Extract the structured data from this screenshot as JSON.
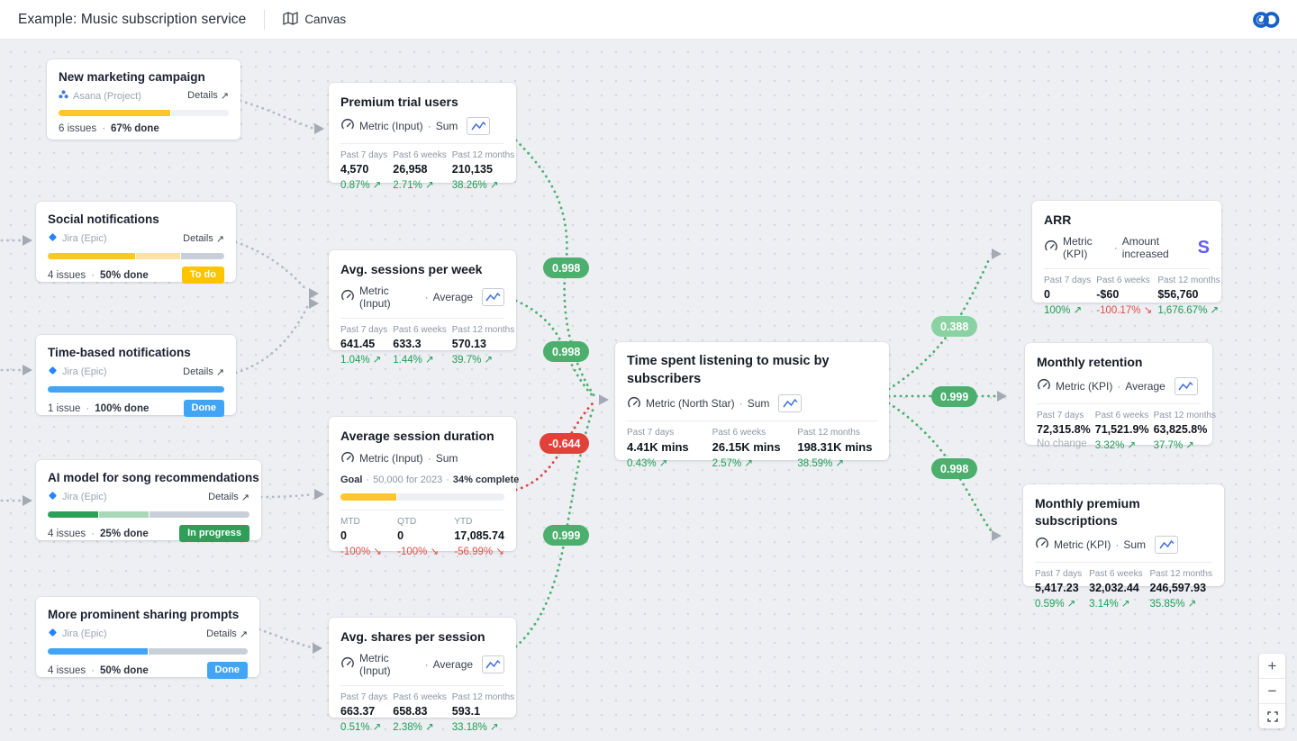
{
  "ui": {
    "sep": "·",
    "external_arrow": "↗",
    "stripe_glyph": "S",
    "zoom_in": "+",
    "zoom_out": "−"
  },
  "header": {
    "title": "Example: Music subscription service",
    "nav_canvas": "Canvas"
  },
  "colors": {
    "positive_delta": "#1f9d55",
    "negative_delta": "#e0504a",
    "neutral_delta": "#a6adb8",
    "correlation_strong": "#4caf6e",
    "correlation_weak": "#8ad2a1",
    "correlation_negative": "#e2413a",
    "edge_gray": "#b5bbc4",
    "edge_green": "#4caf6e",
    "edge_red": "#e0413c"
  },
  "workstreams": [
    {
      "title": "New marketing campaign",
      "source": "Asana (Project)",
      "source_icon": "asana",
      "details_label": "Details",
      "issues": "6 issues",
      "done": "67% done",
      "progress": [
        {
          "color": "#ffc62c",
          "pct": 66
        },
        {
          "color": "#f0f1f4",
          "pct": 34
        }
      ]
    },
    {
      "title": "Social notifications",
      "source": "Jira (Epic)",
      "source_icon": "jira",
      "details_label": "Details",
      "issues": "4 issues",
      "done": "50% done",
      "badge": {
        "label": "To do",
        "color": "#ffc400"
      },
      "progress": [
        {
          "color": "#ffc62c",
          "pct": 50
        },
        {
          "color": "#ffe2a1",
          "pct": 25
        },
        {
          "color": "#c9cfd8",
          "pct": 25
        }
      ]
    },
    {
      "title": "Time-based notifications",
      "source": "Jira (Epic)",
      "source_icon": "jira",
      "details_label": "Details",
      "issues": "1 issue",
      "done": "100% done",
      "badge": {
        "label": "Done",
        "color": "#41a4f5"
      },
      "progress": [
        {
          "color": "#41a4f5",
          "pct": 100
        }
      ]
    },
    {
      "title": "AI model for song recommendations",
      "source": "Jira (Epic)",
      "source_icon": "jira",
      "details_label": "Details",
      "issues": "4 issues",
      "done": "25% done",
      "badge": {
        "label": "In progress",
        "color": "#2e9e58"
      },
      "progress": [
        {
          "color": "#2e9e58",
          "pct": 25
        },
        {
          "color": "#a9d8b8",
          "pct": 25
        },
        {
          "color": "#c9cfd8",
          "pct": 50
        }
      ]
    },
    {
      "title": "More prominent sharing prompts",
      "source": "Jira (Epic)",
      "source_icon": "jira",
      "details_label": "Details",
      "issues": "4 issues",
      "done": "50% done",
      "badge": {
        "label": "Done",
        "color": "#41a4f5"
      },
      "progress": [
        {
          "color": "#41a4f5",
          "pct": 50
        },
        {
          "color": "#c9cfd8",
          "pct": 50
        }
      ]
    }
  ],
  "metrics": [
    {
      "title": "Premium trial users",
      "type": "Metric (Input)",
      "agg": "Sum",
      "cols": [
        {
          "label": "Past 7 days",
          "value": "4,570",
          "delta": "0.87% ↗",
          "trend": "up"
        },
        {
          "label": "Past 6 weeks",
          "value": "26,958",
          "delta": "2.71% ↗",
          "trend": "up"
        },
        {
          "label": "Past 12 months",
          "value": "210,135",
          "delta": "38.26% ↗",
          "trend": "up"
        }
      ]
    },
    {
      "title": "Avg. sessions per week",
      "type": "Metric (Input)",
      "agg": "Average",
      "cols": [
        {
          "label": "Past 7 days",
          "value": "641.45",
          "delta": "1.04% ↗",
          "trend": "up"
        },
        {
          "label": "Past 6 weeks",
          "value": "633.3",
          "delta": "1.44% ↗",
          "trend": "up"
        },
        {
          "label": "Past 12 months",
          "value": "570.13",
          "delta": "39.7% ↗",
          "trend": "up"
        }
      ]
    },
    {
      "title": "Average session duration",
      "type": "Metric (Input)",
      "agg": "Sum",
      "goal": {
        "label": "Goal",
        "text": "50,000 for 2023",
        "complete": "34% complete"
      },
      "goal_segments": [
        {
          "color": "#ffc62c",
          "pct": 34
        },
        {
          "color": "#edeff2",
          "pct": 66
        }
      ],
      "cols": [
        {
          "label": "MTD",
          "value": "0",
          "delta": "-100% ↘",
          "trend": "down"
        },
        {
          "label": "QTD",
          "value": "0",
          "delta": "-100% ↘",
          "trend": "down"
        },
        {
          "label": "YTD",
          "value": "17,085.74",
          "delta": "-56.99% ↘",
          "trend": "down"
        }
      ]
    },
    {
      "title": "Avg. shares per session",
      "type": "Metric (Input)",
      "agg": "Average",
      "cols": [
        {
          "label": "Past 7 days",
          "value": "663.37",
          "delta": "0.51% ↗",
          "trend": "up"
        },
        {
          "label": "Past 6 weeks",
          "value": "658.83",
          "delta": "2.38% ↗",
          "trend": "up"
        },
        {
          "label": "Past 12 months",
          "value": "593.1",
          "delta": "33.18% ↗",
          "trend": "up"
        }
      ]
    },
    {
      "title": "Time spent listening to music by subscribers",
      "type": "Metric (North Star)",
      "agg": "Sum",
      "cols": [
        {
          "label": "Past 7 days",
          "value": "4.41K mins",
          "delta": "0.43% ↗",
          "trend": "up"
        },
        {
          "label": "Past 6 weeks",
          "value": "26.15K mins",
          "delta": "2.57% ↗",
          "trend": "up"
        },
        {
          "label": "Past 12 months",
          "value": "198.31K mins",
          "delta": "38.59% ↗",
          "trend": "up"
        }
      ]
    },
    {
      "title": "ARR",
      "type": "Metric (KPI)",
      "agg": "Amount increased",
      "integration": "stripe",
      "cols": [
        {
          "label": "Past 7 days",
          "value": "0",
          "delta": "100% ↗",
          "trend": "up"
        },
        {
          "label": "Past 6 weeks",
          "value": "-$60",
          "delta": "-100.17% ↘",
          "trend": "down"
        },
        {
          "label": "Past 12 months",
          "value": "$56,760",
          "delta": "1,676.67% ↗",
          "trend": "up"
        }
      ]
    },
    {
      "title": "Monthly retention",
      "type": "Metric (KPI)",
      "agg": "Average",
      "cols": [
        {
          "label": "Past 7 days",
          "value": "72,315.8%",
          "delta": "No change",
          "trend": "none"
        },
        {
          "label": "Past 6 weeks",
          "value": "71,521.9%",
          "delta": "3.32% ↗",
          "trend": "up"
        },
        {
          "label": "Past 12 months",
          "value": "63,825.8%",
          "delta": "37.7% ↗",
          "trend": "up"
        }
      ]
    },
    {
      "title": "Monthly premium subscriptions",
      "type": "Metric (KPI)",
      "agg": "Sum",
      "cols": [
        {
          "label": "Past 7 days",
          "value": "5,417.23",
          "delta": "0.59% ↗",
          "trend": "up"
        },
        {
          "label": "Past 6 weeks",
          "value": "32,032.44",
          "delta": "3.14% ↗",
          "trend": "up"
        },
        {
          "label": "Past 12 months",
          "value": "246,597.93",
          "delta": "35.85% ↗",
          "trend": "up"
        }
      ]
    }
  ],
  "correlations": [
    {
      "value": "0.998",
      "strength": "strong-positive"
    },
    {
      "value": "0.998",
      "strength": "strong-positive"
    },
    {
      "value": "-0.644",
      "strength": "negative"
    },
    {
      "value": "0.999",
      "strength": "strong-positive"
    },
    {
      "value": "0.388",
      "strength": "weak-positive"
    },
    {
      "value": "0.999",
      "strength": "strong-positive"
    },
    {
      "value": "0.998",
      "strength": "strong-positive"
    }
  ]
}
